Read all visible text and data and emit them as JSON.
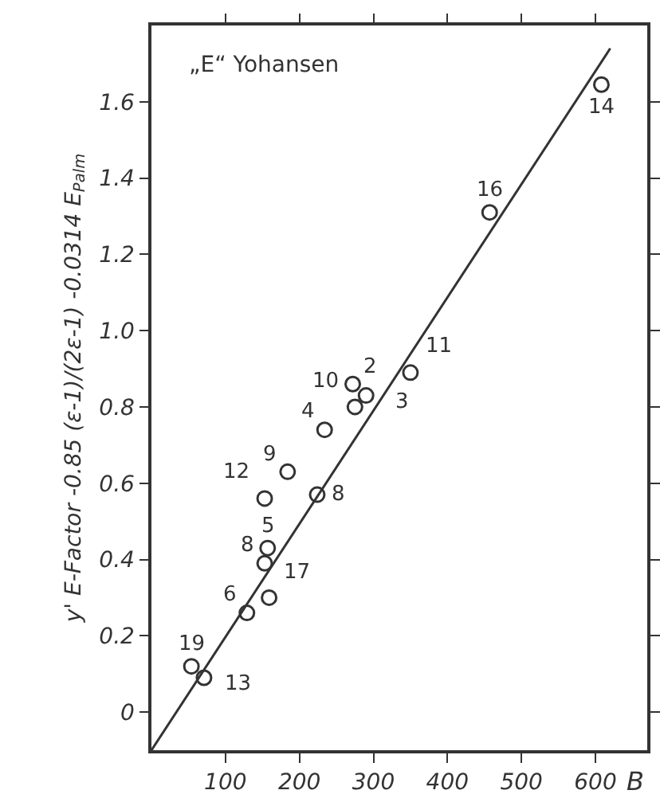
{
  "chart_data": {
    "type": "scatter",
    "title": "„E“ Yohansen",
    "xlabel": "B",
    "ylabel": "y' E-Factor -0.85 (ε-1)/(2ε-1) -0.0314 E$_{Palm}$",
    "series": [
      {
        "type": "scatter",
        "color": "#333333",
        "marker": "circle",
        "x": [
          54,
          71,
          129,
          159,
          153,
          157,
          153,
          184,
          224,
          234,
          275,
          272,
          290,
          350,
          457,
          608
        ],
        "values": [
          0.12,
          0.09,
          0.26,
          0.3,
          0.39,
          0.43,
          0.56,
          0.63,
          0.57,
          0.74,
          0.8,
          0.86,
          0.83,
          0.89,
          1.31,
          1.645
        ]
      },
      {
        "type": "line",
        "color": "#333333",
        "marker": "none",
        "line_style": "solid",
        "x": [
          0,
          620
        ],
        "values": [
          -0.1,
          1.74
        ]
      }
    ],
    "annotations": [
      {
        "text": "19",
        "x": 54,
        "y": 0.12
      },
      {
        "text": "13",
        "x": 71,
        "y": 0.09
      },
      {
        "text": "6",
        "x": 129,
        "y": 0.26
      },
      {
        "text": "17",
        "x": 159,
        "y": 0.3
      },
      {
        "text": "8",
        "x": 153,
        "y": 0.39
      },
      {
        "text": "5",
        "x": 157,
        "y": 0.43
      },
      {
        "text": "12",
        "x": 153,
        "y": 0.56
      },
      {
        "text": "9",
        "x": 184,
        "y": 0.63
      },
      {
        "text": "8",
        "x": 224,
        "y": 0.57
      },
      {
        "text": "4",
        "x": 234,
        "y": 0.74
      },
      {
        "text": "10",
        "x": 275,
        "y": 0.8
      },
      {
        "text": "2",
        "x": 272,
        "y": 0.86
      },
      {
        "text": "3",
        "x": 290,
        "y": 0.83
      },
      {
        "text": "11",
        "x": 350,
        "y": 0.89
      },
      {
        "text": "16",
        "x": 457,
        "y": 1.31
      },
      {
        "text": "14",
        "x": 608,
        "y": 1.645
      }
    ],
    "xlim": [
      0,
      670
    ],
    "ylim": [
      -0.1,
      1.8
    ],
    "xticks": [
      100,
      200,
      300,
      400,
      500,
      600
    ],
    "yticks": [
      0,
      {
        "value": 0.2,
        "label": "0.2"
      },
      {
        "value": 0.4,
        "label": "0.4"
      },
      {
        "value": 0.6,
        "label": "0.6"
      },
      {
        "value": 0.8,
        "label": "0.8"
      },
      {
        "value": 1.0,
        "label": "1.0"
      },
      {
        "value": 1.2,
        "label": "1.2"
      },
      {
        "value": 1.4,
        "label": "1.4"
      },
      {
        "value": 1.6,
        "label": "1.6"
      }
    ],
    "grid": false
  }
}
